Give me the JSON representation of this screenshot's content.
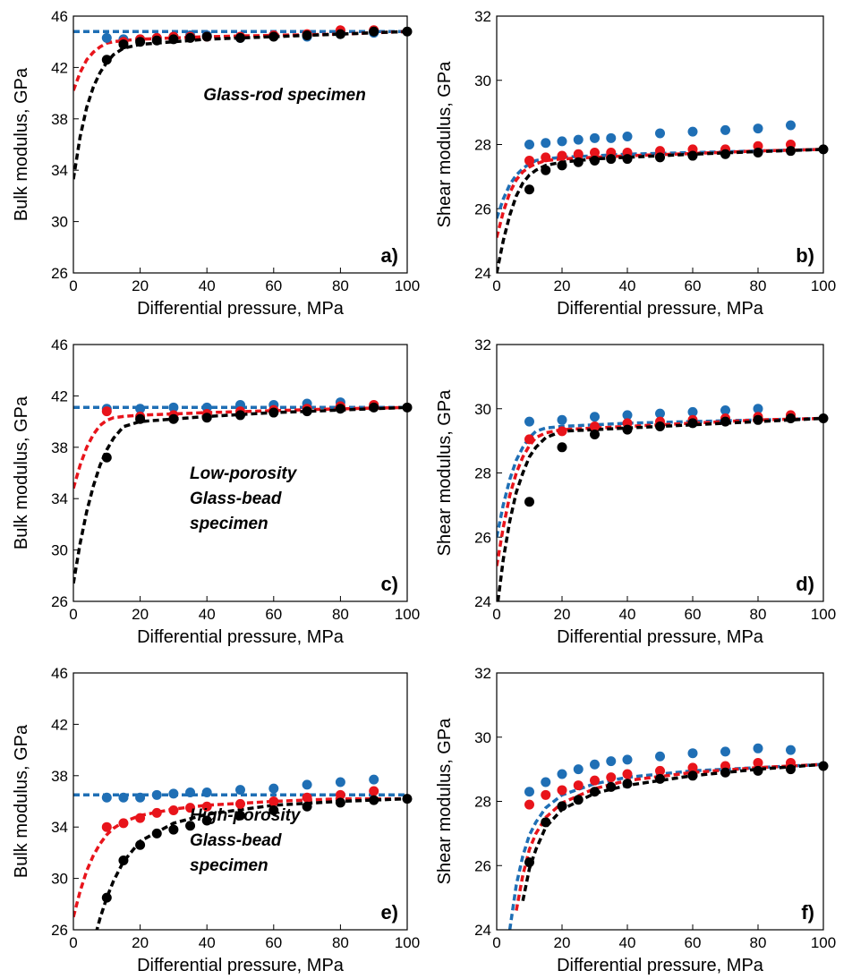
{
  "chart_data": [
    {
      "type": "scatter",
      "xlabel": "Differential pressure, MPa",
      "ylabel": "Bulk modulus, GPa",
      "panel_label": "a)",
      "annotation": [
        "Glass-rod specimen"
      ],
      "xlim": [
        0,
        100
      ],
      "ylim": [
        26,
        46
      ],
      "xticks": [
        0,
        20,
        40,
        60,
        80,
        100
      ],
      "yticks": [
        26,
        30,
        34,
        38,
        42,
        46
      ],
      "x": [
        10,
        15,
        20,
        25,
        30,
        35,
        40,
        50,
        60,
        70,
        80,
        90,
        100
      ],
      "series": [
        {
          "color": "#1f6fb5",
          "values": [
            44.3,
            44.2,
            44.2,
            44.3,
            44.4,
            44.5,
            44.5,
            44.3,
            44.5,
            44.4,
            44.6,
            44.7,
            null
          ]
        },
        {
          "color": "#e8141b",
          "values": [
            null,
            44.0,
            44.2,
            44.3,
            44.4,
            44.4,
            44.4,
            44.4,
            44.5,
            44.6,
            44.9,
            44.9,
            null
          ]
        },
        {
          "color": "#000000",
          "values": [
            42.6,
            43.8,
            44.0,
            44.1,
            44.2,
            44.3,
            44.4,
            44.3,
            44.4,
            44.5,
            44.6,
            44.8,
            44.8
          ]
        }
      ],
      "fit_x": [
        0,
        2,
        4,
        6,
        8,
        10,
        12,
        15,
        20,
        30,
        40,
        60,
        80,
        100
      ],
      "fits": [
        {
          "color": "#1f6fb5",
          "values": [
            44.8,
            44.8,
            44.8,
            44.8,
            44.8,
            44.8,
            44.8,
            44.8,
            44.8,
            44.8,
            44.8,
            44.8,
            44.8,
            44.8
          ]
        },
        {
          "color": "#e8141b",
          "values": [
            40.2,
            41.6,
            42.6,
            43.2,
            43.6,
            43.9,
            44.0,
            44.1,
            44.2,
            44.3,
            44.4,
            44.5,
            44.6,
            44.8
          ]
        },
        {
          "color": "#000000",
          "values": [
            33.3,
            36.6,
            38.9,
            40.5,
            41.6,
            42.4,
            43.0,
            43.5,
            43.8,
            44.0,
            44.2,
            44.4,
            44.6,
            44.8
          ]
        }
      ]
    },
    {
      "type": "scatter",
      "xlabel": "Differential pressure, MPa",
      "ylabel": "Shear modulus, GPa",
      "panel_label": "b)",
      "annotation": [],
      "xlim": [
        0,
        100
      ],
      "ylim": [
        24,
        32
      ],
      "xticks": [
        0,
        20,
        40,
        60,
        80,
        100
      ],
      "yticks": [
        24,
        26,
        28,
        30,
        32
      ],
      "x": [
        10,
        15,
        20,
        25,
        30,
        35,
        40,
        50,
        60,
        70,
        80,
        90,
        100
      ],
      "series": [
        {
          "color": "#1f6fb5",
          "values": [
            28.0,
            28.05,
            28.1,
            28.15,
            28.2,
            28.2,
            28.25,
            28.35,
            28.4,
            28.45,
            28.5,
            28.6,
            null
          ]
        },
        {
          "color": "#e8141b",
          "values": [
            27.5,
            27.6,
            27.65,
            27.7,
            27.75,
            27.75,
            27.75,
            27.8,
            27.85,
            27.85,
            27.95,
            28.0,
            null
          ]
        },
        {
          "color": "#000000",
          "values": [
            26.6,
            27.2,
            27.35,
            27.45,
            27.5,
            27.55,
            27.55,
            27.6,
            27.65,
            27.7,
            27.75,
            27.8,
            27.85
          ]
        }
      ],
      "fit_x": [
        0,
        2,
        4,
        6,
        8,
        10,
        12,
        15,
        20,
        30,
        40,
        60,
        80,
        100
      ],
      "fits": [
        {
          "color": "#1f6fb5",
          "values": [
            25.7,
            26.3,
            26.75,
            27.05,
            27.25,
            27.4,
            27.5,
            27.55,
            27.6,
            27.65,
            27.7,
            27.75,
            27.8,
            27.85
          ]
        },
        {
          "color": "#e8141b",
          "values": [
            25.1,
            25.9,
            26.5,
            26.9,
            27.15,
            27.3,
            27.4,
            27.5,
            27.55,
            27.6,
            27.65,
            27.72,
            27.8,
            27.85
          ]
        },
        {
          "color": "#000000",
          "values": [
            24.0,
            25.0,
            25.8,
            26.4,
            26.8,
            27.05,
            27.2,
            27.35,
            27.45,
            27.55,
            27.6,
            27.7,
            27.78,
            27.85
          ]
        }
      ]
    },
    {
      "type": "scatter",
      "xlabel": "Differential pressure, MPa",
      "ylabel": "Bulk modulus, GPa",
      "panel_label": "c)",
      "annotation": [
        "Low-porosity",
        "Glass-bead",
        "specimen"
      ],
      "xlim": [
        0,
        100
      ],
      "ylim": [
        26,
        46
      ],
      "xticks": [
        0,
        20,
        40,
        60,
        80,
        100
      ],
      "yticks": [
        26,
        30,
        34,
        38,
        42,
        46
      ],
      "x": [
        10,
        20,
        30,
        40,
        50,
        60,
        70,
        80,
        90,
        100
      ],
      "series": [
        {
          "color": "#1f6fb5",
          "values": [
            41.0,
            41.0,
            41.1,
            41.1,
            41.3,
            41.3,
            41.4,
            41.5,
            null,
            null
          ]
        },
        {
          "color": "#e8141b",
          "values": [
            40.8,
            40.4,
            40.5,
            40.6,
            40.8,
            40.9,
            41.0,
            41.2,
            41.3,
            null
          ]
        },
        {
          "color": "#000000",
          "values": [
            37.2,
            40.2,
            40.2,
            40.3,
            40.5,
            40.7,
            40.8,
            41.0,
            41.1,
            41.1
          ]
        }
      ],
      "fit_x": [
        0,
        2,
        4,
        6,
        8,
        10,
        12,
        15,
        20,
        30,
        40,
        60,
        80,
        100
      ],
      "fits": [
        {
          "color": "#1f6fb5",
          "values": [
            41.1,
            41.1,
            41.1,
            41.1,
            41.1,
            41.1,
            41.1,
            41.1,
            41.1,
            41.1,
            41.1,
            41.1,
            41.1,
            41.1
          ]
        },
        {
          "color": "#e8141b",
          "values": [
            34.8,
            36.6,
            38.0,
            39.0,
            39.7,
            40.1,
            40.3,
            40.4,
            40.5,
            40.6,
            40.7,
            40.85,
            41.0,
            41.1
          ]
        },
        {
          "color": "#000000",
          "values": [
            27.4,
            30.5,
            33.0,
            35.0,
            36.6,
            37.8,
            38.7,
            39.6,
            40.0,
            40.2,
            40.4,
            40.7,
            40.9,
            41.1
          ]
        }
      ]
    },
    {
      "type": "scatter",
      "xlabel": "Differential pressure, MPa",
      "ylabel": "Shear modulus, GPa",
      "panel_label": "d)",
      "annotation": [],
      "xlim": [
        0,
        100
      ],
      "ylim": [
        24,
        32
      ],
      "xticks": [
        0,
        20,
        40,
        60,
        80,
        100
      ],
      "yticks": [
        24,
        26,
        28,
        30,
        32
      ],
      "x": [
        10,
        20,
        30,
        40,
        50,
        60,
        70,
        80,
        90,
        100
      ],
      "series": [
        {
          "color": "#1f6fb5",
          "values": [
            29.6,
            29.65,
            29.75,
            29.8,
            29.85,
            29.9,
            29.95,
            30.0,
            null,
            null
          ]
        },
        {
          "color": "#e8141b",
          "values": [
            29.05,
            29.3,
            29.45,
            29.55,
            29.6,
            29.65,
            29.7,
            29.75,
            29.8,
            null
          ]
        },
        {
          "color": "#000000",
          "values": [
            27.1,
            28.8,
            29.2,
            29.35,
            29.45,
            29.55,
            29.6,
            29.65,
            29.7,
            29.7
          ]
        }
      ],
      "fit_x": [
        0,
        2,
        4,
        6,
        8,
        10,
        12,
        15,
        20,
        30,
        40,
        60,
        80,
        100
      ],
      "fits": [
        {
          "color": "#1f6fb5",
          "values": [
            26.0,
            27.0,
            27.8,
            28.4,
            28.8,
            29.1,
            29.3,
            29.4,
            29.45,
            29.5,
            29.55,
            29.6,
            29.65,
            29.7
          ]
        },
        {
          "color": "#e8141b",
          "values": [
            25.1,
            26.3,
            27.3,
            28.0,
            28.5,
            28.85,
            29.1,
            29.25,
            29.35,
            29.4,
            29.45,
            29.55,
            29.65,
            29.7
          ]
        },
        {
          "color": "#000000",
          "values": [
            23.7,
            25.3,
            26.5,
            27.4,
            28.0,
            28.5,
            28.8,
            29.1,
            29.3,
            29.35,
            29.4,
            29.5,
            29.6,
            29.7
          ]
        }
      ]
    },
    {
      "type": "scatter",
      "xlabel": "Differential pressure, MPa",
      "ylabel": "Bulk modulus, GPa",
      "panel_label": "e)",
      "annotation": [
        "High-porosity",
        "Glass-bead",
        "specimen"
      ],
      "xlim": [
        0,
        100
      ],
      "ylim": [
        26,
        46
      ],
      "xticks": [
        0,
        20,
        40,
        60,
        80,
        100
      ],
      "yticks": [
        26,
        30,
        34,
        38,
        42,
        46
      ],
      "x": [
        10,
        15,
        20,
        25,
        30,
        35,
        40,
        50,
        60,
        70,
        80,
        90,
        100
      ],
      "series": [
        {
          "color": "#1f6fb5",
          "values": [
            36.3,
            36.3,
            36.3,
            36.5,
            36.6,
            36.7,
            36.7,
            36.9,
            37.0,
            37.3,
            37.5,
            37.7,
            null
          ]
        },
        {
          "color": "#e8141b",
          "values": [
            34.0,
            34.3,
            34.7,
            35.1,
            35.3,
            35.5,
            35.6,
            35.8,
            36.0,
            36.3,
            36.5,
            36.8,
            null
          ]
        },
        {
          "color": "#000000",
          "values": [
            28.5,
            31.4,
            32.6,
            33.5,
            33.8,
            34.1,
            34.5,
            34.9,
            35.3,
            35.6,
            35.9,
            36.1,
            36.2
          ]
        }
      ],
      "fit_x": [
        0,
        2,
        4,
        6,
        8,
        10,
        12,
        15,
        20,
        30,
        40,
        60,
        80,
        100
      ],
      "fits": [
        {
          "color": "#1f6fb5",
          "values": [
            36.5,
            36.5,
            36.5,
            36.5,
            36.5,
            36.5,
            36.5,
            36.5,
            36.5,
            36.5,
            36.5,
            36.5,
            36.5,
            36.5
          ]
        },
        {
          "color": "#e8141b",
          "values": [
            27.0,
            29.0,
            30.6,
            31.8,
            32.7,
            33.4,
            33.9,
            34.4,
            34.9,
            35.4,
            35.7,
            36.0,
            36.2,
            36.2
          ]
        },
        {
          "color": "#000000",
          "values": [
            null,
            null,
            null,
            25.0,
            26.9,
            28.5,
            29.8,
            31.3,
            32.9,
            34.3,
            35.0,
            35.7,
            36.0,
            36.2
          ]
        }
      ]
    },
    {
      "type": "scatter",
      "xlabel": "Differential pressure, MPa",
      "ylabel": "Shear modulus, GPa",
      "panel_label": "f)",
      "annotation": [],
      "xlim": [
        0,
        100
      ],
      "ylim": [
        24,
        32
      ],
      "xticks": [
        0,
        20,
        40,
        60,
        80,
        100
      ],
      "yticks": [
        24,
        26,
        28,
        30,
        32
      ],
      "x": [
        10,
        15,
        20,
        25,
        30,
        35,
        40,
        50,
        60,
        70,
        80,
        90,
        100
      ],
      "series": [
        {
          "color": "#1f6fb5",
          "values": [
            28.3,
            28.6,
            28.85,
            29.0,
            29.15,
            29.25,
            29.3,
            29.4,
            29.5,
            29.55,
            29.65,
            29.6,
            null
          ]
        },
        {
          "color": "#e8141b",
          "values": [
            27.9,
            28.2,
            28.35,
            28.5,
            28.65,
            28.75,
            28.85,
            28.95,
            29.05,
            29.1,
            29.2,
            29.2,
            null
          ]
        },
        {
          "color": "#000000",
          "values": [
            26.1,
            27.35,
            27.85,
            28.05,
            28.3,
            28.45,
            28.55,
            28.7,
            28.8,
            28.9,
            28.95,
            29.0,
            29.1
          ]
        }
      ],
      "fit_x": [
        0,
        2,
        4,
        6,
        8,
        10,
        12,
        15,
        20,
        30,
        40,
        60,
        80,
        100
      ],
      "fits": [
        {
          "color": "#1f6fb5",
          "values": [
            null,
            null,
            24.0,
            25.4,
            26.3,
            26.95,
            27.35,
            27.8,
            28.2,
            28.55,
            28.75,
            28.95,
            29.05,
            29.15
          ]
        },
        {
          "color": "#e8141b",
          "values": [
            null,
            null,
            null,
            24.6,
            25.7,
            26.5,
            27.0,
            27.5,
            27.95,
            28.4,
            28.65,
            28.9,
            29.05,
            29.15
          ]
        },
        {
          "color": "#000000",
          "values": [
            null,
            null,
            null,
            null,
            24.9,
            25.9,
            26.5,
            27.2,
            27.75,
            28.25,
            28.5,
            28.8,
            29.0,
            29.15
          ]
        }
      ]
    }
  ]
}
